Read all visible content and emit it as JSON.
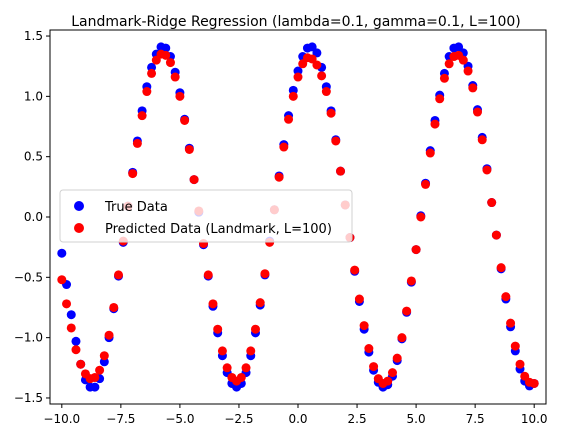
{
  "chart_data": {
    "type": "scatter",
    "title": "Landmark-Ridge Regression (lambda=0.1, gamma=0.1, L=100)",
    "xlabel": "",
    "ylabel": "",
    "xlim": [
      -10.5,
      10.5
    ],
    "ylim": [
      -1.55,
      1.55
    ],
    "x_ticks": [
      -10.0,
      -7.5,
      -5.0,
      -2.5,
      0.0,
      2.5,
      5.0,
      7.5,
      10.0
    ],
    "x_tick_labels": [
      "−10.0",
      "−7.5",
      "−5.0",
      "−2.5",
      "0.0",
      "2.5",
      "5.0",
      "7.5",
      "10.0"
    ],
    "y_ticks": [
      -1.5,
      -1.0,
      -0.5,
      0.0,
      0.5,
      1.0,
      1.5
    ],
    "y_tick_labels": [
      "−1.5",
      "−1.0",
      "−0.5",
      "0.0",
      "0.5",
      "1.0",
      "1.5"
    ],
    "grid": false,
    "legend_position": "center-left",
    "legend": [
      {
        "label": "True Data",
        "color": "#0000ff"
      },
      {
        "label": "Predicted Data (Landmark, L=100)",
        "color": "#ff0000"
      }
    ],
    "series": [
      {
        "name": "True Data",
        "color": "#0000ff",
        "x": [
          -10.0,
          -9.8,
          -9.6,
          -9.4,
          -9.2,
          -9.0,
          -8.8,
          -8.6,
          -8.4,
          -8.2,
          -8.0,
          -7.8,
          -7.6,
          -7.4,
          -7.2,
          -7.0,
          -6.8,
          -6.6,
          -6.4,
          -6.2,
          -6.0,
          -5.8,
          -5.6,
          -5.4,
          -5.2,
          -5.0,
          -4.8,
          -4.6,
          -4.4,
          -4.2,
          -4.0,
          -3.8,
          -3.6,
          -3.4,
          -3.2,
          -3.0,
          -2.8,
          -2.6,
          -2.4,
          -2.2,
          -2.0,
          -1.8,
          -1.6,
          -1.4,
          -1.2,
          -1.0,
          -0.8,
          -0.6,
          -0.4,
          -0.2,
          0.0,
          0.2,
          0.4,
          0.6,
          0.8,
          1.0,
          1.2,
          1.4,
          1.6,
          1.8,
          2.0,
          2.2,
          2.4,
          2.6,
          2.8,
          3.0,
          3.2,
          3.4,
          3.6,
          3.8,
          4.0,
          4.2,
          4.4,
          4.6,
          4.8,
          5.0,
          5.2,
          5.4,
          5.6,
          5.8,
          6.0,
          6.2,
          6.4,
          6.6,
          6.8,
          7.0,
          7.2,
          7.4,
          7.6,
          7.8,
          8.0,
          8.2,
          8.4,
          8.6,
          8.8,
          9.0,
          9.2,
          9.4,
          9.6,
          9.8,
          10.0
        ],
        "y": [
          -0.3,
          -0.56,
          -0.81,
          -1.03,
          -1.22,
          -1.35,
          -1.41,
          -1.41,
          -1.34,
          -1.2,
          -1.0,
          -0.76,
          -0.49,
          -0.21,
          0.09,
          0.37,
          0.63,
          0.88,
          1.08,
          1.24,
          1.35,
          1.41,
          1.4,
          1.33,
          1.2,
          1.03,
          0.81,
          0.57,
          0.31,
          0.04,
          -0.23,
          -0.49,
          -0.74,
          -0.96,
          -1.15,
          -1.29,
          -1.38,
          -1.41,
          -1.38,
          -1.29,
          -1.15,
          -0.96,
          -0.73,
          -0.48,
          -0.2,
          0.06,
          0.34,
          0.6,
          0.84,
          1.05,
          1.21,
          1.33,
          1.4,
          1.41,
          1.36,
          1.24,
          1.08,
          0.88,
          0.64,
          0.38,
          0.1,
          -0.17,
          -0.45,
          -0.7,
          -0.93,
          -1.12,
          -1.27,
          -1.37,
          -1.41,
          -1.39,
          -1.32,
          -1.19,
          -1.01,
          -0.79,
          -0.54,
          -0.27,
          0.01,
          0.28,
          0.55,
          0.8,
          1.01,
          1.19,
          1.33,
          1.4,
          1.41,
          1.36,
          1.25,
          1.09,
          0.89,
          0.66,
          0.4,
          0.12,
          -0.15,
          -0.43,
          -0.68,
          -0.91,
          -1.11,
          -1.26,
          -1.36,
          -1.4,
          -1.38
        ]
      },
      {
        "name": "Predicted Data (Landmark, L=100)",
        "color": "#ff0000",
        "x": [
          -10.0,
          -9.8,
          -9.6,
          -9.4,
          -9.2,
          -9.0,
          -8.8,
          -8.6,
          -8.4,
          -8.2,
          -8.0,
          -7.8,
          -7.6,
          -7.4,
          -7.2,
          -7.0,
          -6.8,
          -6.6,
          -6.4,
          -6.2,
          -6.0,
          -5.8,
          -5.6,
          -5.4,
          -5.2,
          -5.0,
          -4.8,
          -4.6,
          -4.4,
          -4.2,
          -4.0,
          -3.8,
          -3.6,
          -3.4,
          -3.2,
          -3.0,
          -2.8,
          -2.6,
          -2.4,
          -2.2,
          -2.0,
          -1.8,
          -1.6,
          -1.4,
          -1.2,
          -1.0,
          -0.8,
          -0.6,
          -0.4,
          -0.2,
          0.0,
          0.2,
          0.4,
          0.6,
          0.8,
          1.0,
          1.2,
          1.4,
          1.6,
          1.8,
          2.0,
          2.2,
          2.4,
          2.6,
          2.8,
          3.0,
          3.2,
          3.4,
          3.6,
          3.8,
          4.0,
          4.2,
          4.4,
          4.6,
          4.8,
          5.0,
          5.2,
          5.4,
          5.6,
          5.8,
          6.0,
          6.2,
          6.4,
          6.6,
          6.8,
          7.0,
          7.2,
          7.4,
          7.6,
          7.8,
          8.0,
          8.2,
          8.4,
          8.6,
          8.8,
          9.0,
          9.2,
          9.4,
          9.6,
          9.8,
          10.0
        ],
        "y": [
          -0.52,
          -0.72,
          -0.92,
          -1.1,
          -1.22,
          -1.3,
          -1.34,
          -1.33,
          -1.27,
          -1.15,
          -0.98,
          -0.75,
          -0.48,
          -0.2,
          0.09,
          0.36,
          0.61,
          0.84,
          1.04,
          1.19,
          1.3,
          1.35,
          1.34,
          1.28,
          1.16,
          1.0,
          0.8,
          0.56,
          0.31,
          0.05,
          -0.22,
          -0.48,
          -0.72,
          -0.93,
          -1.11,
          -1.25,
          -1.33,
          -1.36,
          -1.33,
          -1.25,
          -1.11,
          -0.93,
          -0.71,
          -0.47,
          -0.21,
          0.06,
          0.33,
          0.58,
          0.81,
          1.0,
          1.16,
          1.27,
          1.32,
          1.31,
          1.26,
          1.17,
          1.04,
          0.86,
          0.63,
          0.38,
          0.1,
          -0.17,
          -0.44,
          -0.68,
          -0.9,
          -1.09,
          -1.24,
          -1.34,
          -1.38,
          -1.36,
          -1.29,
          -1.17,
          -1.0,
          -0.78,
          -0.53,
          -0.27,
          0.0,
          0.27,
          0.53,
          0.77,
          0.98,
          1.15,
          1.27,
          1.33,
          1.34,
          1.3,
          1.21,
          1.07,
          0.87,
          0.64,
          0.39,
          0.12,
          -0.15,
          -0.42,
          -0.66,
          -0.88,
          -1.07,
          -1.22,
          -1.32,
          -1.37,
          -1.38
        ]
      }
    ]
  }
}
